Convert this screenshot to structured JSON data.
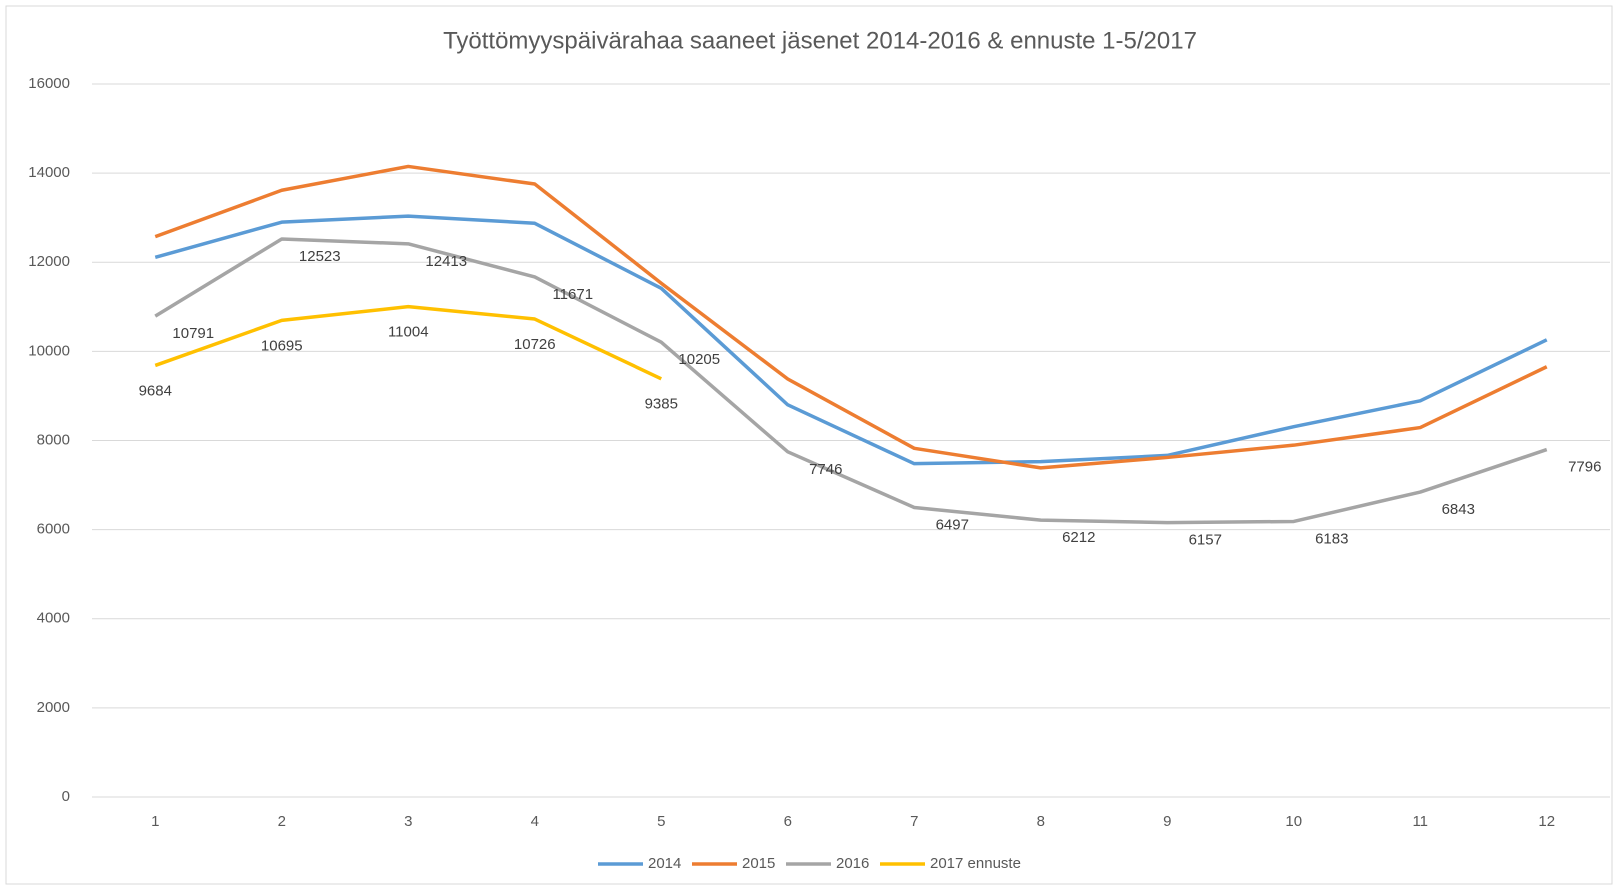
{
  "chart_data": {
    "type": "line",
    "title": "Työttömyyspäivärahaa saaneet jäsenet 2014-2016 & ennuste 1-5/2017",
    "categories": [
      "1",
      "2",
      "3",
      "4",
      "5",
      "6",
      "7",
      "8",
      "9",
      "10",
      "11",
      "12"
    ],
    "series": [
      {
        "name": "2014",
        "color": "#5b9bd5",
        "values": [
          12110,
          12900,
          13035,
          12875,
          11415,
          8800,
          7480,
          7525,
          7665,
          8310,
          8890,
          10260
        ]
      },
      {
        "name": "2015",
        "color": "#ed7d31",
        "values": [
          12575,
          13615,
          14150,
          13755,
          11530,
          9380,
          7825,
          7385,
          7620,
          7895,
          8290,
          9655
        ]
      },
      {
        "name": "2016",
        "color": "#a5a5a5",
        "show_labels": true,
        "values": [
          10791,
          12523,
          12413,
          11671,
          10205,
          7746,
          6497,
          6212,
          6157,
          6183,
          6843,
          7796
        ]
      },
      {
        "name": "2017 ennuste",
        "color": "#ffc000",
        "show_labels": true,
        "values": [
          9684,
          10695,
          11004,
          10726,
          9385,
          null,
          null,
          null,
          null,
          null,
          null,
          null
        ]
      }
    ],
    "ylim": [
      0,
      16000
    ],
    "yticks": [
      0,
      2000,
      4000,
      6000,
      8000,
      10000,
      12000,
      14000,
      16000
    ],
    "grid": true,
    "legend": "bottom"
  }
}
